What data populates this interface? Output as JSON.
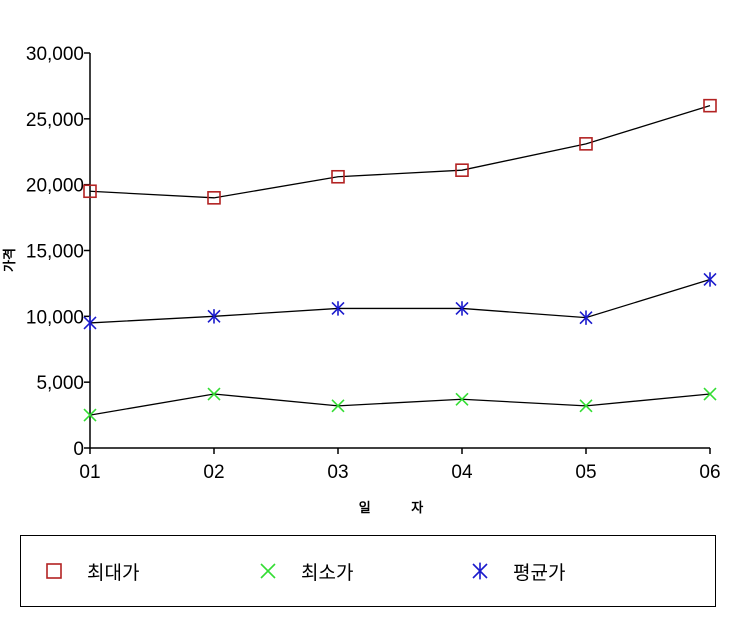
{
  "chart_data": {
    "type": "line",
    "categories": [
      "01",
      "02",
      "03",
      "04",
      "05",
      "06"
    ],
    "xlabel": "일 자",
    "ylabel": "가격",
    "yticks": [
      "0",
      "5,000",
      "10,000",
      "15,000",
      "20,000",
      "25,000",
      "30,000"
    ],
    "ylim": [
      0,
      30000
    ],
    "grid": false,
    "legend_position": "bottom",
    "series": [
      {
        "name": "최대가",
        "marker": "square",
        "color": "#b22222",
        "values": [
          19500,
          19000,
          20600,
          21100,
          23100,
          26000
        ]
      },
      {
        "name": "최소가",
        "marker": "x",
        "color": "#33dd33",
        "values": [
          2500,
          4100,
          3200,
          3700,
          3200,
          4100
        ]
      },
      {
        "name": "평균가",
        "marker": "asterisk",
        "color": "#1a1acc",
        "values": [
          9500,
          10000,
          10600,
          10600,
          9900,
          12800
        ]
      }
    ]
  }
}
